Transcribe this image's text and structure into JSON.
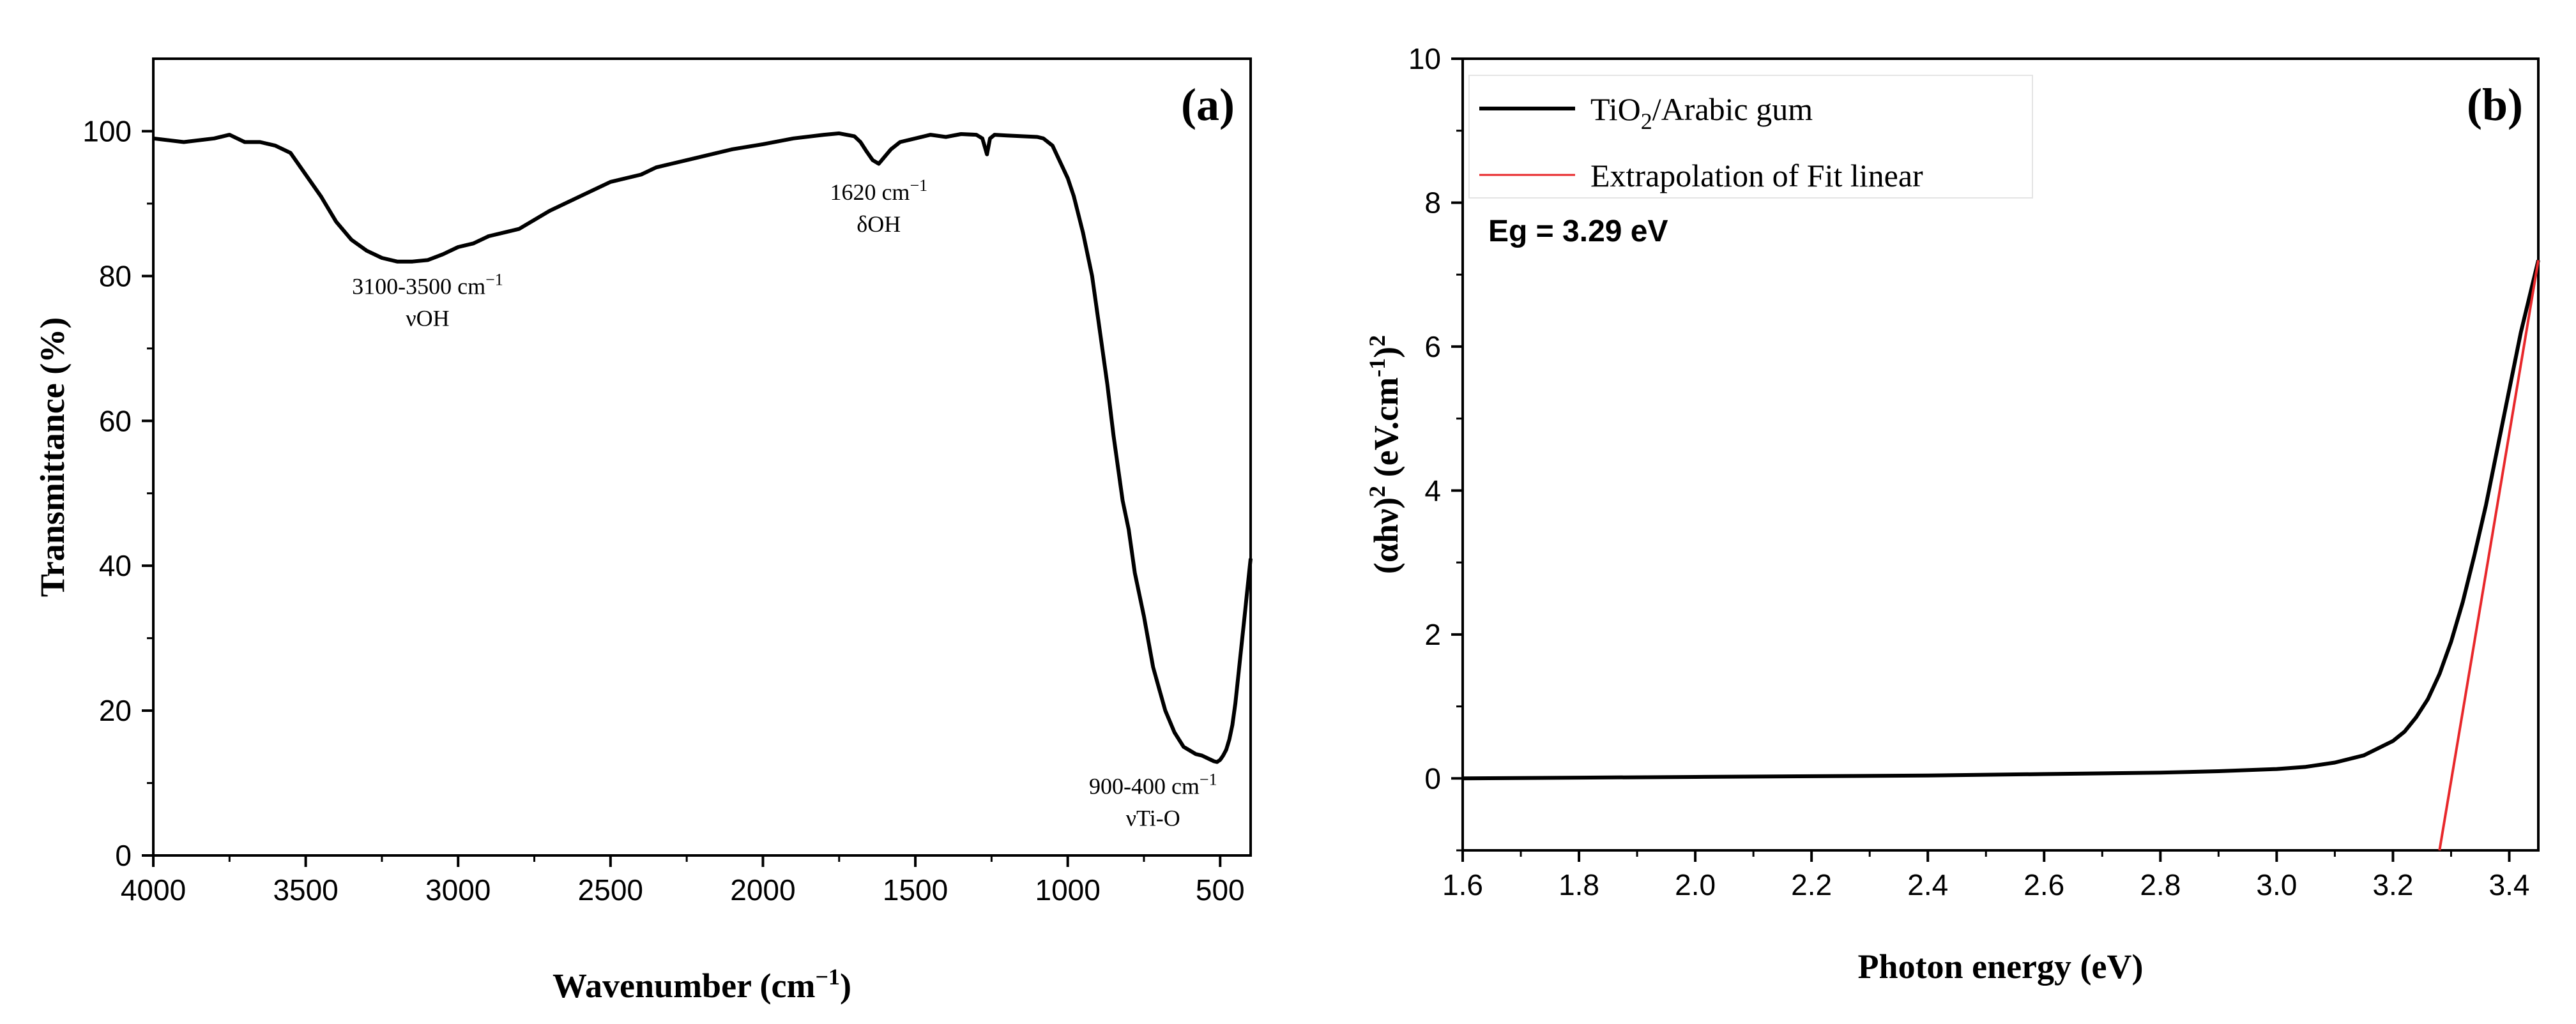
{
  "chart_data": [
    {
      "type": "line",
      "panel_label": "(a)",
      "xlabel": "Wavenumber (cm",
      "xlabel_sup": "−1",
      "xlabel_end": ")",
      "ylabel": "Transmittance (%)",
      "xlim": [
        4000,
        400
      ],
      "ylim": [
        0,
        110
      ],
      "xticks": [
        4000,
        3500,
        3000,
        2500,
        2000,
        1500,
        1000,
        500
      ],
      "yticks": [
        0,
        20,
        40,
        60,
        80,
        100
      ],
      "series": [
        {
          "name": "FTIR spectrum",
          "color": "#000000",
          "x": [
            4000,
            3900,
            3800,
            3750,
            3700,
            3650,
            3600,
            3550,
            3500,
            3450,
            3400,
            3350,
            3300,
            3250,
            3200,
            3150,
            3100,
            3050,
            3000,
            2950,
            2900,
            2850,
            2800,
            2700,
            2600,
            2500,
            2400,
            2350,
            2300,
            2200,
            2100,
            2000,
            1900,
            1800,
            1750,
            1700,
            1680,
            1660,
            1640,
            1620,
            1600,
            1580,
            1550,
            1500,
            1450,
            1400,
            1350,
            1300,
            1280,
            1265,
            1255,
            1240,
            1200,
            1150,
            1100,
            1080,
            1050,
            1000,
            980,
            950,
            920,
            900,
            870,
            850,
            820,
            800,
            780,
            750,
            720,
            700,
            680,
            650,
            620,
            600,
            580,
            560,
            540,
            520,
            510,
            500,
            490,
            480,
            470,
            460,
            450,
            440,
            430,
            420,
            410,
            400
          ],
          "y": [
            99,
            98.5,
            99,
            99.5,
            98.5,
            98.5,
            98,
            97,
            94,
            91,
            87.5,
            85,
            83.5,
            82.5,
            82,
            82,
            82.2,
            83,
            84,
            84.5,
            85.5,
            86,
            86.5,
            89,
            91,
            93,
            94,
            95,
            95.5,
            96.5,
            97.5,
            98.2,
            99,
            99.5,
            99.7,
            99.3,
            98.5,
            97.2,
            96,
            95.5,
            96.5,
            97.5,
            98.5,
            99,
            99.5,
            99.2,
            99.6,
            99.5,
            99,
            96.8,
            99,
            99.5,
            99.4,
            99.3,
            99.2,
            99,
            98,
            93.5,
            91,
            86,
            80,
            74,
            65,
            58,
            49,
            45,
            39,
            33,
            26,
            23,
            20,
            17,
            15,
            14.5,
            14,
            13.8,
            13.4,
            13,
            12.9,
            13.2,
            13.8,
            14.6,
            16,
            18,
            21,
            25,
            29,
            33,
            37,
            41
          ]
        }
      ],
      "annotations": [
        {
          "id": "oh-stretch",
          "line1": "3100-3500 cm",
          "line1_sup": "−1",
          "line2": "νOH",
          "x": 3100,
          "y": 77.5
        },
        {
          "id": "oh-bend",
          "line1": "1620 cm",
          "line1_sup": "−1",
          "line2": "δOH",
          "x": 1620,
          "y": 90.5
        },
        {
          "id": "ti-o",
          "line1": "900-400 cm",
          "line1_sup": "−1",
          "line2": "νTi-O",
          "x": 720,
          "y": 8.5
        }
      ]
    },
    {
      "type": "line",
      "panel_label": "(b)",
      "xlabel": "Photon energy (eV)",
      "ylabel_parts": {
        "a": "(αhν)",
        "b": "2",
        "c": " (eV.cm",
        "d": "-1",
        "e": ")",
        "f": "2"
      },
      "xlim": [
        1.6,
        3.45
      ],
      "ylim": [
        -1,
        10
      ],
      "xticks": [
        "1.6",
        "1.8",
        "2.0",
        "2.2",
        "2.4",
        "2.6",
        "2.8",
        "3.0",
        "3.2",
        "3.4"
      ],
      "yticks": [
        0,
        2,
        4,
        6,
        8,
        10
      ],
      "legend": [
        {
          "label": "TiO",
          "sub": "2",
          "label_end": "/Arabic gum",
          "color": "#000000"
        },
        {
          "label": "Extrapolation of Fit linear",
          "color": "#e8282b"
        }
      ],
      "band_gap_text": "Eg = 3.29 eV",
      "series": [
        {
          "name": "TiO2/Arabic gum",
          "color": "#000000",
          "x": [
            1.6,
            1.8,
            2.0,
            2.2,
            2.4,
            2.6,
            2.8,
            2.9,
            3.0,
            3.05,
            3.1,
            3.15,
            3.2,
            3.22,
            3.24,
            3.26,
            3.28,
            3.3,
            3.32,
            3.34,
            3.36,
            3.38,
            3.4,
            3.42,
            3.45
          ],
          "y": [
            0,
            0.01,
            0.02,
            0.03,
            0.04,
            0.06,
            0.08,
            0.1,
            0.13,
            0.16,
            0.22,
            0.32,
            0.52,
            0.65,
            0.85,
            1.1,
            1.45,
            1.9,
            2.45,
            3.1,
            3.8,
            4.6,
            5.4,
            6.2,
            7.2
          ]
        },
        {
          "name": "Extrapolation of Fit linear",
          "color": "#e8282b",
          "x": [
            3.28,
            3.45
          ],
          "y": [
            -1,
            7.2
          ]
        }
      ]
    }
  ]
}
